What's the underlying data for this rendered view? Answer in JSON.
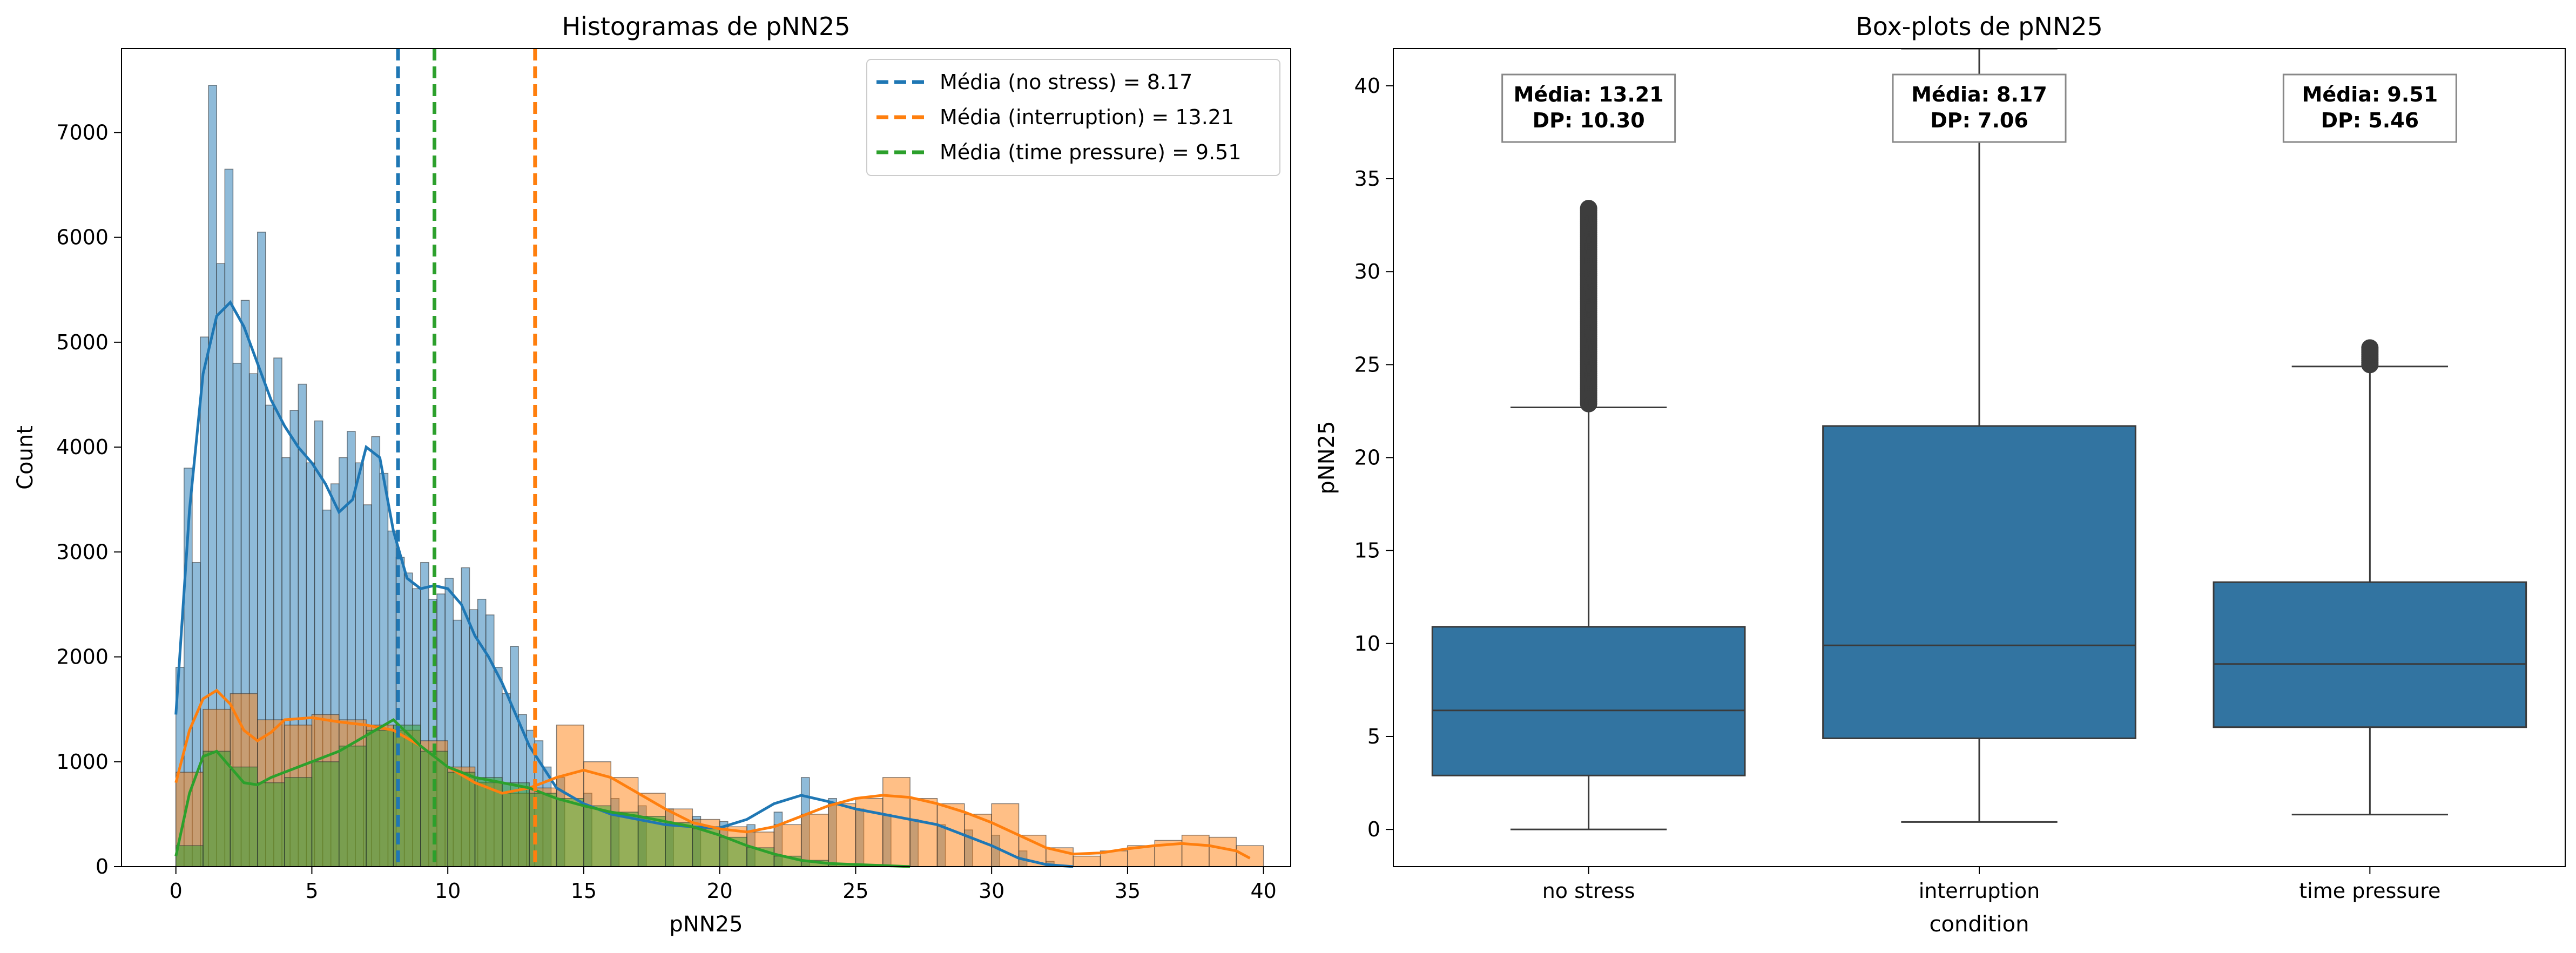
{
  "chart_data": [
    {
      "type": "histogram",
      "title": "Histogramas de pNN25",
      "xlabel": "pNN25",
      "ylabel": "Count",
      "xlim": [
        -2,
        41
      ],
      "ylim": [
        0,
        7800
      ],
      "xticks": [
        0,
        5,
        10,
        15,
        20,
        25,
        30,
        35,
        40
      ],
      "yticks": [
        0,
        1000,
        2000,
        3000,
        4000,
        5000,
        6000,
        7000
      ],
      "legend_position": "top-right",
      "colors": {
        "no_stress": "#1f77b4",
        "interruption": "#ff7f0e",
        "time_pressure": "#2ca02c"
      },
      "mean_lines": [
        {
          "label": "Média (no stress) = 8.17",
          "x": 8.17,
          "color": "#1f77b4"
        },
        {
          "label": "Média (interruption) = 13.21",
          "x": 13.21,
          "color": "#ff7f0e"
        },
        {
          "label": "Média (time pressure) = 9.51",
          "x": 9.51,
          "color": "#2ca02c"
        }
      ],
      "series": [
        {
          "condition": "no stress",
          "color": "#1f77b4",
          "kde_x": [
            0,
            0.5,
            1,
            1.5,
            2,
            2.5,
            3,
            3.5,
            4,
            4.5,
            5,
            5.5,
            6,
            6.5,
            7,
            7.5,
            8,
            8.5,
            9,
            9.5,
            10,
            10.5,
            11,
            11.5,
            12,
            12.5,
            13,
            13.5,
            14,
            15,
            16,
            17,
            18,
            19,
            20,
            21,
            22,
            23,
            24,
            25,
            26,
            27,
            28,
            29,
            30,
            31,
            32,
            33
          ],
          "kde_y": [
            1450,
            3400,
            4700,
            5250,
            5380,
            5150,
            4800,
            4450,
            4200,
            4000,
            3850,
            3650,
            3380,
            3500,
            4000,
            3900,
            3200,
            2750,
            2650,
            2680,
            2650,
            2500,
            2200,
            2000,
            1750,
            1450,
            1150,
            950,
            750,
            600,
            500,
            450,
            400,
            380,
            370,
            450,
            600,
            680,
            620,
            550,
            500,
            450,
            400,
            300,
            200,
            80,
            20,
            0
          ],
          "hist_x": [
            0,
            0.3,
            0.6,
            0.9,
            1.2,
            1.5,
            1.8,
            2.1,
            2.4,
            2.7,
            3.0,
            3.3,
            3.6,
            3.9,
            4.2,
            4.5,
            4.8,
            5.1,
            5.4,
            5.7,
            6.0,
            6.3,
            6.6,
            6.9,
            7.2,
            7.5,
            7.8,
            8.1,
            8.4,
            8.7,
            9.0,
            9.3,
            9.6,
            9.9,
            10.2,
            10.5,
            10.8,
            11.1,
            11.4,
            11.7,
            12.0,
            12.3,
            12.6,
            12.9,
            13.2,
            13.5,
            14,
            15,
            16,
            17,
            18,
            19,
            20,
            21,
            22,
            23,
            24,
            25,
            26,
            27,
            28,
            29,
            30,
            31,
            32
          ],
          "hist_y": [
            1900,
            3800,
            2900,
            5050,
            7450,
            5750,
            6650,
            4800,
            5400,
            4700,
            6050,
            4400,
            4850,
            3900,
            4350,
            4600,
            3850,
            4250,
            3400,
            3650,
            3900,
            4150,
            3850,
            3450,
            4100,
            3750,
            3200,
            2950,
            2800,
            2650,
            2900,
            2550,
            2600,
            2750,
            2350,
            2850,
            2450,
            2550,
            2400,
            1900,
            1650,
            2100,
            1450,
            1300,
            1200,
            950,
            850,
            700,
            650,
            580,
            550,
            480,
            430,
            400,
            520,
            850,
            650,
            550,
            500,
            450,
            400,
            350,
            300,
            150,
            50
          ]
        },
        {
          "condition": "interruption",
          "color": "#ff7f0e",
          "kde_x": [
            0,
            0.5,
            1,
            1.5,
            2,
            2.5,
            3,
            3.5,
            4,
            5,
            6,
            7,
            8,
            9,
            10,
            11,
            12,
            13,
            14,
            15,
            16,
            17,
            18,
            19,
            20,
            21,
            22,
            23,
            24,
            25,
            26,
            27,
            28,
            29,
            30,
            31,
            32,
            33,
            34,
            35,
            36,
            37,
            38,
            39,
            39.5
          ],
          "kde_y": [
            800,
            1300,
            1600,
            1680,
            1550,
            1300,
            1200,
            1280,
            1400,
            1420,
            1380,
            1350,
            1300,
            1150,
            950,
            800,
            700,
            750,
            850,
            920,
            850,
            700,
            550,
            420,
            360,
            330,
            380,
            480,
            580,
            650,
            680,
            660,
            600,
            520,
            420,
            300,
            180,
            120,
            130,
            170,
            200,
            220,
            200,
            150,
            80
          ],
          "hist_x": [
            0,
            1,
            2,
            3,
            4,
            5,
            6,
            7,
            8,
            9,
            10,
            11,
            12,
            13,
            14,
            15,
            16,
            17,
            18,
            19,
            20,
            21,
            22,
            23,
            24,
            25,
            26,
            27,
            28,
            29,
            30,
            31,
            32,
            33,
            34,
            35,
            36,
            37,
            38,
            39
          ],
          "hist_y": [
            900,
            1500,
            1650,
            1400,
            1350,
            1450,
            1400,
            1350,
            1300,
            1200,
            950,
            800,
            700,
            750,
            1350,
            1000,
            850,
            700,
            550,
            450,
            380,
            330,
            400,
            500,
            600,
            650,
            850,
            650,
            600,
            500,
            600,
            300,
            180,
            100,
            150,
            200,
            250,
            300,
            280,
            200
          ]
        },
        {
          "condition": "time pressure",
          "color": "#2ca02c",
          "kde_x": [
            0,
            0.5,
            1,
            1.5,
            2,
            2.5,
            3,
            3.5,
            4,
            5,
            6,
            7,
            8,
            9,
            10,
            11,
            12,
            13,
            14,
            15,
            16,
            17,
            18,
            19,
            20,
            21,
            22,
            23,
            24,
            25,
            26,
            27
          ],
          "kde_y": [
            100,
            700,
            1050,
            1100,
            950,
            800,
            780,
            850,
            900,
            1000,
            1100,
            1250,
            1400,
            1150,
            950,
            850,
            800,
            750,
            650,
            580,
            520,
            480,
            430,
            380,
            300,
            200,
            120,
            60,
            30,
            20,
            10,
            0
          ],
          "hist_x": [
            0,
            1,
            2,
            3,
            4,
            5,
            6,
            7,
            8,
            9,
            10,
            11,
            12,
            13,
            14,
            15,
            16,
            17,
            18,
            19,
            20,
            21,
            22,
            23,
            24,
            25,
            26
          ],
          "hist_y": [
            200,
            1100,
            950,
            800,
            850,
            1000,
            1150,
            1300,
            1350,
            1100,
            900,
            850,
            800,
            700,
            650,
            580,
            520,
            480,
            420,
            360,
            280,
            180,
            100,
            60,
            30,
            20,
            10
          ]
        }
      ]
    },
    {
      "type": "box",
      "title": "Box-plots de pNN25",
      "xlabel": "condition",
      "ylabel": "pNN25",
      "ylim": [
        -2,
        42
      ],
      "yticks": [
        0,
        5,
        10,
        15,
        20,
        25,
        30,
        35,
        40
      ],
      "box_color": "#3274a1",
      "categories": [
        "no stress",
        "interruption",
        "time pressure"
      ],
      "boxes": [
        {
          "category": "no stress",
          "whisker_low": 0.0,
          "q1": 2.9,
          "median": 6.4,
          "q3": 10.9,
          "whisker_high": 22.7,
          "outliers_low": 22.9,
          "outliers_high": 33.4
        },
        {
          "category": "interruption",
          "whisker_low": 0.4,
          "q1": 4.9,
          "median": 9.9,
          "q3": 21.7,
          "whisker_high": 42.0,
          "outliers_low": null,
          "outliers_high": null
        },
        {
          "category": "time pressure",
          "whisker_low": 0.8,
          "q1": 5.5,
          "median": 8.9,
          "q3": 13.3,
          "whisker_high": 24.9,
          "outliers_low": 25.0,
          "outliers_high": 25.9
        }
      ],
      "annotations": [
        {
          "line1": "Média: 13.21",
          "line2": "DP: 10.30"
        },
        {
          "line1": "Média: 8.17",
          "line2": "DP: 7.06"
        },
        {
          "line1": "Média: 9.51",
          "line2": "DP: 5.46"
        }
      ]
    }
  ]
}
